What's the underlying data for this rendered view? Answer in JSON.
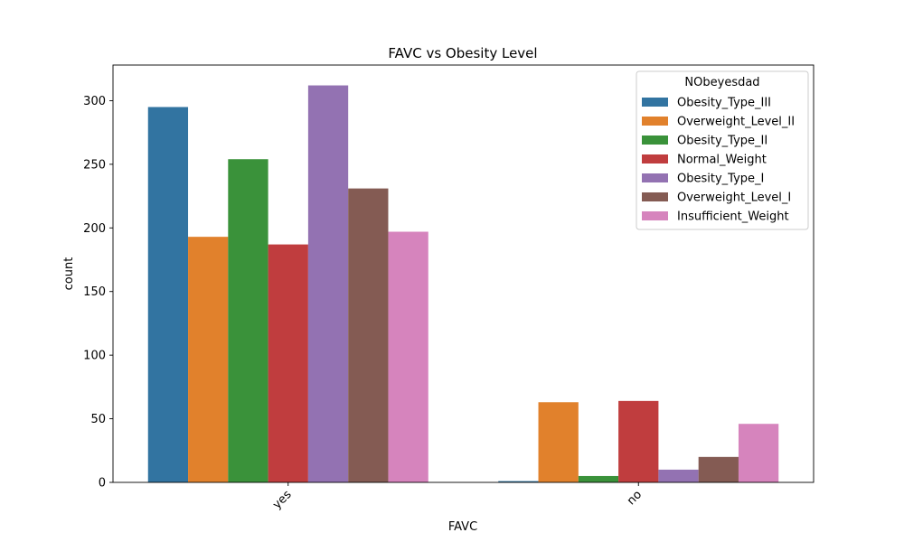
{
  "chart_data": {
    "type": "bar",
    "title": "FAVC vs Obesity Level",
    "xlabel": "FAVC",
    "ylabel": "count",
    "categories": [
      "yes",
      "no"
    ],
    "ylim": [
      0,
      328
    ],
    "yticks": [
      0,
      50,
      100,
      150,
      200,
      250,
      300
    ],
    "grid": false,
    "legend": {
      "title": "NObeyesdad",
      "position": "top-right"
    },
    "series": [
      {
        "name": "Obesity_Type_III",
        "color": "#3274a1",
        "values": [
          295,
          1
        ]
      },
      {
        "name": "Overweight_Level_II",
        "color": "#e1812c",
        "values": [
          193,
          63
        ]
      },
      {
        "name": "Obesity_Type_II",
        "color": "#3a923a",
        "values": [
          254,
          5
        ]
      },
      {
        "name": "Normal_Weight",
        "color": "#c03d3e",
        "values": [
          187,
          64
        ]
      },
      {
        "name": "Obesity_Type_I",
        "color": "#9372b2",
        "values": [
          312,
          10
        ]
      },
      {
        "name": "Overweight_Level_I",
        "color": "#845b53",
        "values": [
          231,
          20
        ]
      },
      {
        "name": "Insufficient_Weight",
        "color": "#d684bd",
        "values": [
          197,
          46
        ]
      }
    ]
  }
}
